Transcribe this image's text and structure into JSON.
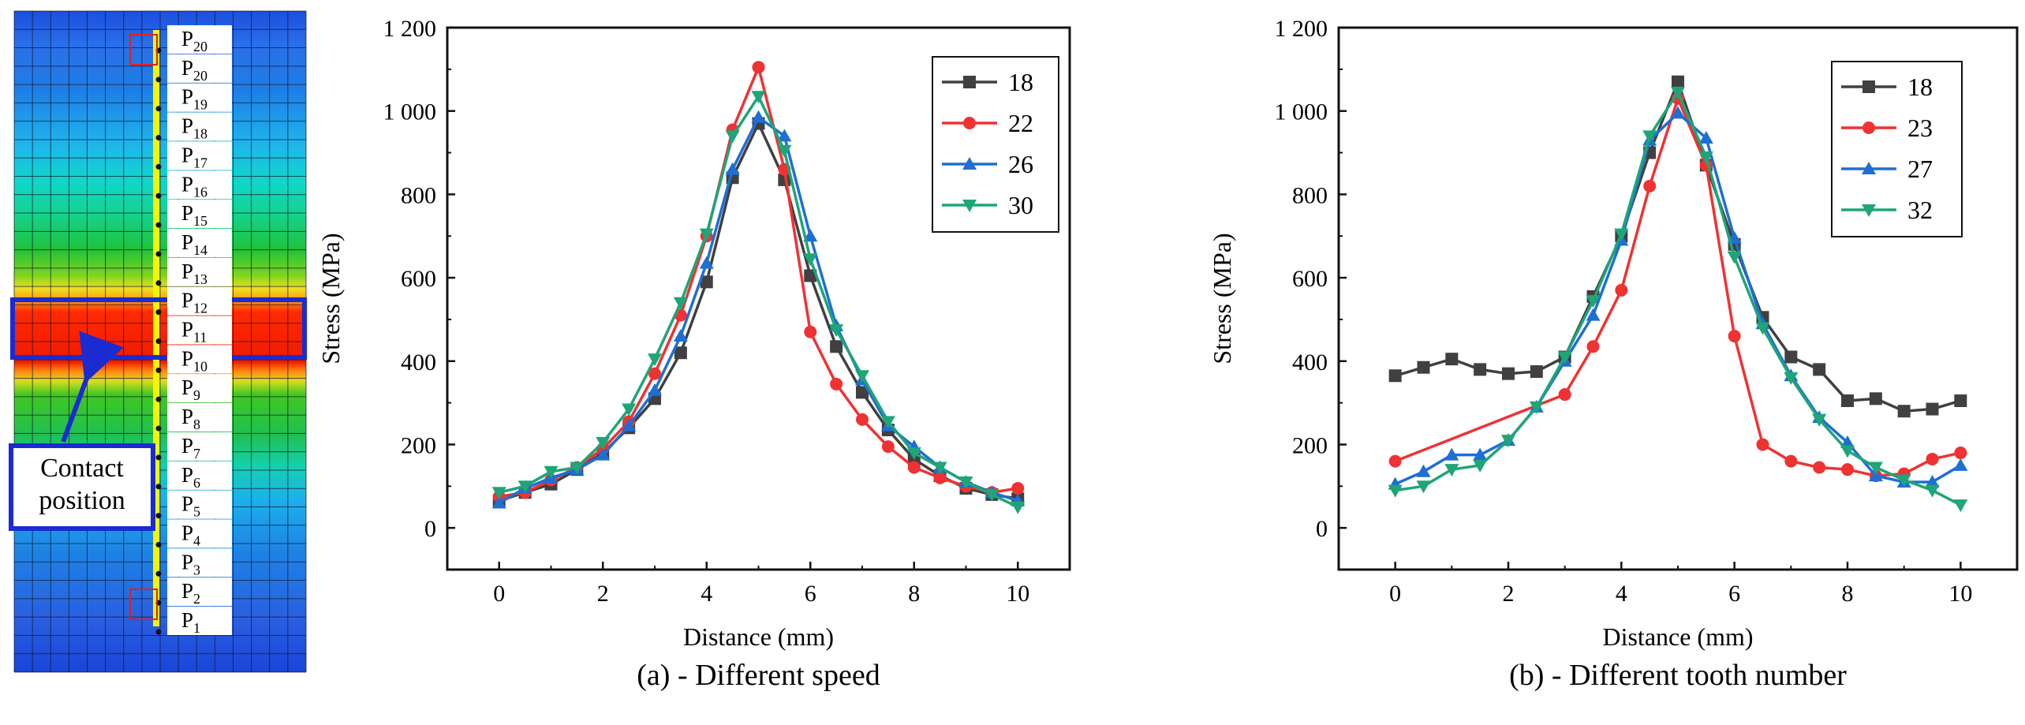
{
  "figure": {
    "left_panel": {
      "points": [
        "P20",
        "P20",
        "P19",
        "P18",
        "P17",
        "P16",
        "P15",
        "P14",
        "P13",
        "P12",
        "P11",
        "P10",
        "P9",
        "P8",
        "P7",
        "P6",
        "P5",
        "P4",
        "P3",
        "P2",
        "P1"
      ],
      "callout": [
        "Contact",
        "position"
      ],
      "colors": {
        "hot": "#ff1a00",
        "grid": "#1a1a2e",
        "highlight": "#1a2bd1",
        "path": "#f5f500"
      }
    },
    "captions": [
      "(a) - Different speed",
      "(b) - Different tooth number"
    ]
  },
  "chart_data": [
    {
      "type": "line",
      "caption": "(a) - Different speed",
      "xlabel": "Distance (mm)",
      "ylabel": "Stress (MPa)",
      "xlim": [
        -1,
        11
      ],
      "ylim": [
        -100,
        1200
      ],
      "xticks": [
        0,
        2,
        4,
        6,
        8,
        10
      ],
      "yticks": [
        0,
        200,
        400,
        600,
        800,
        1000,
        1200
      ],
      "ytick_labels": [
        "0",
        "200",
        "400",
        "600",
        "800",
        "1 000",
        "1 200"
      ],
      "legend_position": "top-right",
      "x": [
        0,
        0.5,
        1,
        1.5,
        2,
        2.5,
        3,
        3.5,
        4,
        4.5,
        5,
        5.5,
        6,
        6.5,
        7,
        7.5,
        8,
        8.5,
        9,
        9.5,
        10
      ],
      "series": [
        {
          "name": "18",
          "color": "#404040",
          "marker": "square",
          "values": [
            65,
            85,
            105,
            140,
            180,
            240,
            310,
            420,
            590,
            840,
            970,
            835,
            605,
            435,
            325,
            235,
            165,
            125,
            95,
            80,
            70
          ]
        },
        {
          "name": "22",
          "color": "#f03232",
          "marker": "circle",
          "values": [
            75,
            85,
            115,
            145,
            190,
            255,
            370,
            510,
            700,
            955,
            1105,
            860,
            470,
            345,
            260,
            195,
            145,
            120,
            100,
            85,
            95
          ]
        },
        {
          "name": "26",
          "color": "#1f6ed4",
          "marker": "triangle-up",
          "values": [
            60,
            95,
            120,
            140,
            175,
            245,
            330,
            460,
            635,
            860,
            985,
            940,
            700,
            485,
            355,
            245,
            195,
            145,
            110,
            85,
            65
          ]
        },
        {
          "name": "30",
          "color": "#1ea578",
          "marker": "triangle-down",
          "values": [
            85,
            100,
            135,
            145,
            205,
            285,
            405,
            540,
            705,
            940,
            1035,
            905,
            645,
            475,
            365,
            255,
            180,
            145,
            110,
            80,
            50
          ]
        }
      ]
    },
    {
      "type": "line",
      "caption": "(b) - Different tooth number",
      "xlabel": "Distance (mm)",
      "ylabel": "Stress (MPa)",
      "xlim": [
        -1,
        11
      ],
      "ylim": [
        -100,
        1200
      ],
      "xticks": [
        0,
        2,
        4,
        6,
        8,
        10
      ],
      "yticks": [
        0,
        200,
        400,
        600,
        800,
        1000,
        1200
      ],
      "ytick_labels": [
        "0",
        "200",
        "400",
        "600",
        "800",
        "1 000",
        "1 200"
      ],
      "legend_position": "top-right",
      "series": [
        {
          "name": "18",
          "color": "#404040",
          "marker": "square",
          "x": [
            0,
            0.5,
            1,
            1.5,
            2,
            2.5,
            3,
            3.5,
            4,
            4.5,
            5,
            5.5,
            6,
            6.5,
            7,
            7.5,
            8,
            8.5,
            9,
            9.5,
            10
          ],
          "values": [
            365,
            385,
            405,
            380,
            370,
            375,
            410,
            555,
            700,
            900,
            1070,
            870,
            680,
            505,
            410,
            380,
            305,
            310,
            280,
            285,
            305
          ]
        },
        {
          "name": "23",
          "color": "#f03232",
          "marker": "circle",
          "x": [
            0,
            3,
            3.5,
            4,
            4.5,
            5,
            5.5,
            6,
            6.5,
            7,
            7.5,
            8,
            8.5,
            9,
            9.5,
            10
          ],
          "values": [
            160,
            320,
            435,
            570,
            820,
            1030,
            870,
            460,
            200,
            160,
            145,
            140,
            125,
            130,
            165,
            180
          ]
        },
        {
          "name": "27",
          "color": "#1f6ed4",
          "marker": "triangle-up",
          "x": [
            0,
            0.5,
            1,
            1.5,
            2,
            2.5,
            3,
            3.5,
            4,
            4.5,
            5,
            5.5,
            6,
            6.5,
            7,
            7.5,
            8,
            8.5,
            9,
            9.5,
            10
          ],
          "values": [
            105,
            135,
            175,
            175,
            210,
            290,
            400,
            510,
            690,
            930,
            995,
            935,
            695,
            490,
            365,
            265,
            205,
            125,
            110,
            110,
            150
          ]
        },
        {
          "name": "32",
          "color": "#1ea578",
          "marker": "triangle-down",
          "x": [
            0,
            0.5,
            1,
            1.5,
            2,
            2.5,
            3,
            3.5,
            4,
            4.5,
            5,
            5.5,
            6,
            6.5,
            7,
            7.5,
            8,
            8.5,
            9,
            9.5,
            10
          ],
          "values": [
            90,
            100,
            140,
            150,
            210,
            290,
            410,
            545,
            705,
            940,
            1045,
            890,
            650,
            480,
            360,
            260,
            185,
            145,
            115,
            90,
            55
          ]
        }
      ]
    }
  ]
}
